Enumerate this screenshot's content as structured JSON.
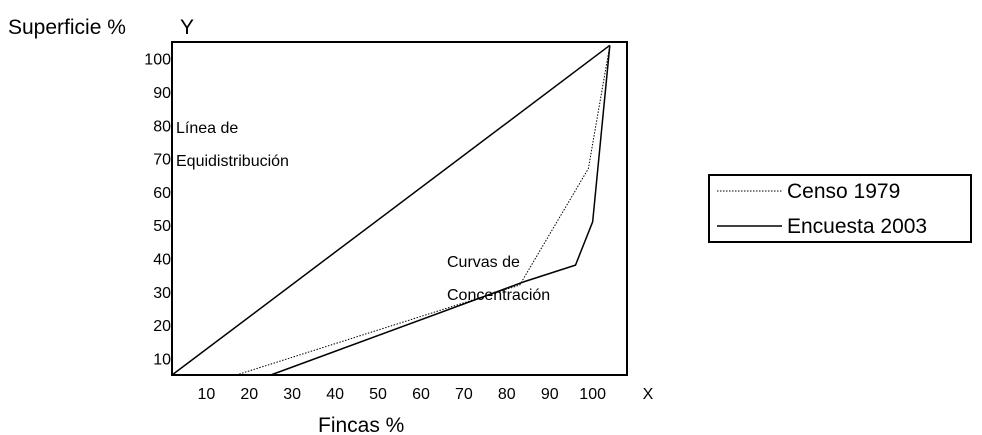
{
  "chart_data": {
    "type": "line",
    "ylabel": "Superficie %",
    "y_axis_symbol": "Y",
    "xlabel": "Fincas %",
    "x_axis_symbol": "X",
    "x_ticks": [
      "10",
      "20",
      "30",
      "40",
      "50",
      "60",
      "70",
      "80",
      "90",
      "100"
    ],
    "y_ticks": [
      "10",
      "20",
      "30",
      "40",
      "50",
      "60",
      "70",
      "80",
      "90",
      "100"
    ],
    "xlim": [
      2,
      108
    ],
    "ylim": [
      5,
      105
    ],
    "grid": false,
    "legend_position": "right",
    "annotations": {
      "equi_line1": "Línea de",
      "equi_line2": "Equidistribución",
      "curves_line1": "Curvas de",
      "curves_line2": "Concentración"
    },
    "series": [
      {
        "name": "Censo 1979",
        "style": "dotted",
        "x": [
          17,
          83,
          99,
          104
        ],
        "y": [
          5,
          32,
          67,
          104
        ]
      },
      {
        "name": "Encuesta 2003",
        "style": "solid",
        "x": [
          25,
          84,
          96,
          100,
          104
        ],
        "y": [
          5,
          33,
          38,
          51,
          104
        ]
      }
    ],
    "equidistribution": {
      "x": [
        2,
        104
      ],
      "y": [
        5,
        104
      ]
    }
  }
}
